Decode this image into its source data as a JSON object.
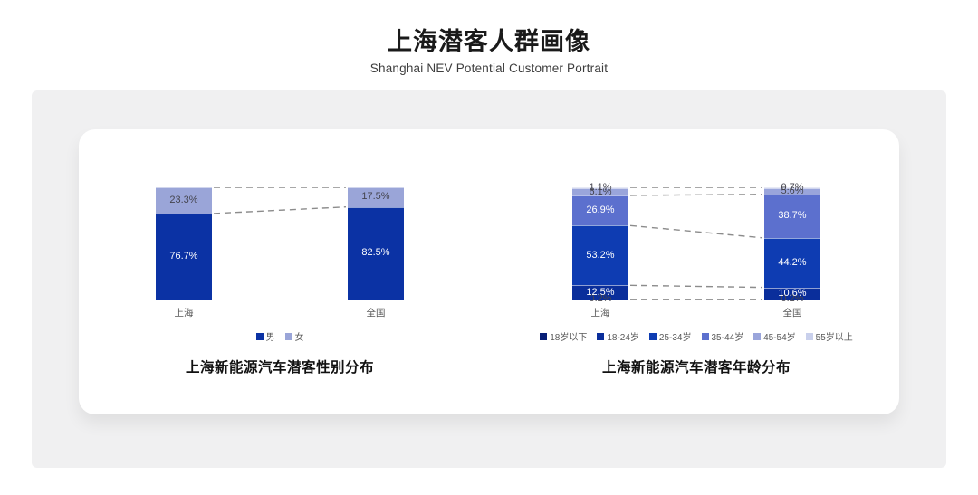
{
  "header": {
    "title": "上海潜客人群画像",
    "subtitle": "Shanghai NEV Potential Customer Portrait"
  },
  "panel": {
    "background": "#F0F0F1",
    "card_background": "#FFFFFF"
  },
  "styles": {
    "axis_color": "#D9D9D9",
    "connector_color": "#8C8C8C",
    "tick_label_color": "#595959",
    "dark_value_label_color": "#44444E"
  },
  "chart_data": [
    {
      "type": "bar",
      "stacked": true,
      "title": "上海新能源汽车潜客性别分布",
      "categories": [
        "上海",
        "全国"
      ],
      "series": [
        {
          "name": "男",
          "values": [
            76.7,
            82.5
          ],
          "color": "#0B32A4",
          "label_color": "#FFFFFF"
        },
        {
          "name": "女",
          "values": [
            23.3,
            17.5
          ],
          "color": "#9AA5D8",
          "label_color": "#44444E"
        }
      ],
      "value_suffix": "%",
      "ylim": [
        0,
        100
      ],
      "grid": false,
      "legend_position": "bottom",
      "connectors_between_bars_at_cumulative_segment": [
        1,
        2
      ]
    },
    {
      "type": "bar",
      "stacked": true,
      "title": "上海新能源汽车潜客年龄分布",
      "categories": [
        "上海",
        "全国"
      ],
      "series": [
        {
          "name": "18岁以下",
          "values": [
            0.2,
            0.2
          ],
          "color": "#081F77",
          "label_color": "#44444E"
        },
        {
          "name": "18-24岁",
          "values": [
            12.5,
            10.6
          ],
          "color": "#0A2E9B",
          "label_color": "#FFFFFF"
        },
        {
          "name": "25-34岁",
          "values": [
            53.2,
            44.2
          ],
          "color": "#0E3CB2",
          "label_color": "#FFFFFF"
        },
        {
          "name": "35-44岁",
          "values": [
            26.9,
            38.7
          ],
          "color": "#5C70CE",
          "label_color": "#FFFFFF"
        },
        {
          "name": "45-54岁",
          "values": [
            6.1,
            5.6
          ],
          "color": "#9AA5DB",
          "label_color": "#44444E"
        },
        {
          "name": "55岁以上",
          "values": [
            1.1,
            0.7
          ],
          "color": "#C9D0EC",
          "label_color": "#44444E"
        }
      ],
      "value_suffix": "%",
      "ylim": [
        0,
        100
      ],
      "grid": false,
      "legend_position": "bottom",
      "connectors_between_bars_at_cumulative_segment": [
        1,
        2,
        3,
        4,
        6
      ]
    }
  ]
}
